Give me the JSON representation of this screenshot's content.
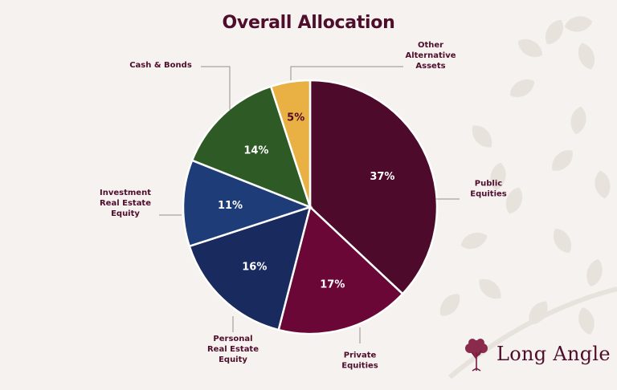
{
  "chart_data": {
    "type": "pie",
    "title": "Overall Allocation",
    "start_angle_deg": 0,
    "direction": "clockwise",
    "slices": [
      {
        "label_lines": [
          "Public",
          "Equities"
        ],
        "value": 37,
        "pct_label": "37%",
        "color": "#4e0a2a",
        "text_color": "#ffffff"
      },
      {
        "label_lines": [
          "Private",
          "Equities"
        ],
        "value": 17,
        "pct_label": "17%",
        "color": "#6b0737",
        "text_color": "#ffffff"
      },
      {
        "label_lines": [
          "Personal",
          "Real Estate",
          "Equity"
        ],
        "value": 16,
        "pct_label": "16%",
        "color": "#182a5e",
        "text_color": "#ffffff"
      },
      {
        "label_lines": [
          "Investment",
          "Real Estate",
          "Equity"
        ],
        "value": 11,
        "pct_label": "11%",
        "color": "#1e3c78",
        "text_color": "#ffffff"
      },
      {
        "label_lines": [
          "Cash & Bonds"
        ],
        "value": 14,
        "pct_label": "14%",
        "color": "#2e5a26",
        "text_color": "#ffffff"
      },
      {
        "label_lines": [
          "Other",
          "Alternative",
          "Assets"
        ],
        "value": 5,
        "pct_label": "5%",
        "color": "#e9b043",
        "text_color": "#4e0a2a"
      }
    ],
    "slice_border_color": "#ffffff",
    "label_color": "#4f0d2c",
    "leader_color": "#9c8f88",
    "legend": "none"
  },
  "brand": {
    "name": "Long Angle",
    "logo_icon": "tree-icon",
    "color": "#7a1a40"
  },
  "background_motif": "leaf-pattern"
}
